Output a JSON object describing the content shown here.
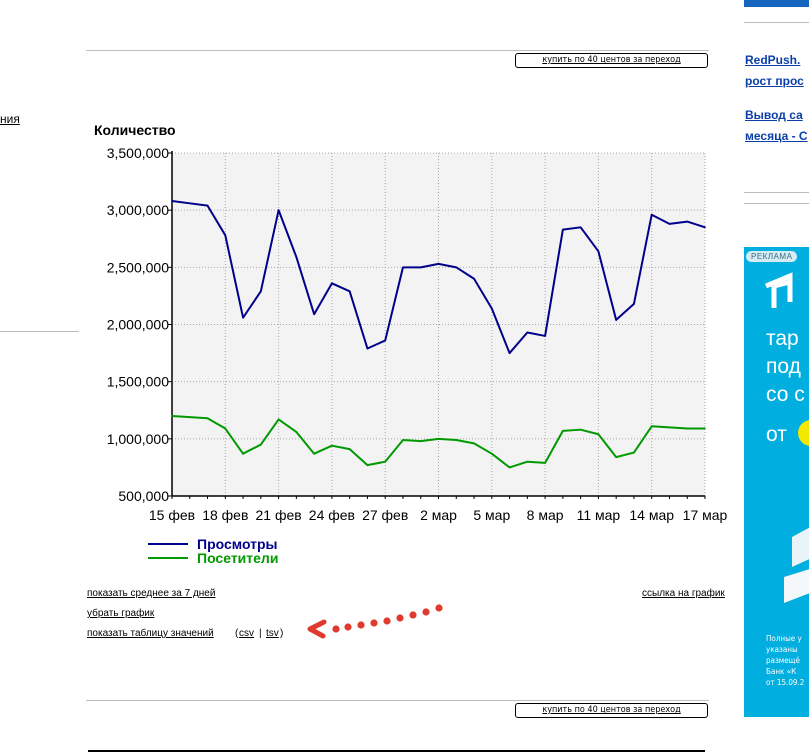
{
  "page": {
    "buy_label": "купить по 40 центов за переход",
    "left_fragment": "ния",
    "side_links": [
      "RedPush.",
      "рост прос",
      "Вывод са",
      "месяца - С"
    ]
  },
  "ad": {
    "badge": "РЕКЛАМА",
    "big_lines": [
      "тар",
      "под",
      "со с",
      "от"
    ],
    "small_lines": [
      "Полные у",
      "указаны",
      "размещё",
      "Банк «К",
      "от 15.09.2"
    ]
  },
  "chart_links": {
    "avg7": "показать среднее за 7 дней",
    "remove": "убрать график",
    "table": "показать таблицу значений",
    "paren_open": "(",
    "csv": "csv",
    "sep": "|",
    "tsv": "tsv",
    "paren_close": ")",
    "link": "ссылка на график"
  },
  "chart_data": {
    "type": "line",
    "ylabel": "Количество",
    "ylim": [
      500000,
      3500000
    ],
    "yticks": [
      3500000,
      3000000,
      2500000,
      2000000,
      1500000,
      1000000,
      500000
    ],
    "ytick_labels": [
      "3,500,000",
      "3,000,000",
      "2,500,000",
      "2,000,000",
      "1,500,000",
      "1,000,000",
      "500,000"
    ],
    "x": [
      "15 фев",
      "16 фев",
      "17 фев",
      "18 фев",
      "19 фев",
      "20 фев",
      "21 фев",
      "22 фев",
      "23 фев",
      "24 фев",
      "25 фев",
      "26 фев",
      "27 фев",
      "28 фев",
      "1 мар",
      "2 мар",
      "3 мар",
      "4 мар",
      "5 мар",
      "6 мар",
      "7 мар",
      "8 мар",
      "9 мар",
      "10 мар",
      "11 мар",
      "12 мар",
      "13 мар",
      "14 мар",
      "15 мар",
      "16 мар",
      "17 мар"
    ],
    "xtick_labels": [
      "15 фев",
      "18 фев",
      "21 фев",
      "24 фев",
      "27 фев",
      "2 мар",
      "5 мар",
      "8 мар",
      "11 мар",
      "14 мар",
      "17 мар"
    ],
    "grid": true,
    "legend_position": "bottom-left",
    "series": [
      {
        "name": "Просмотры",
        "color": "#00008b",
        "values": [
          3080000,
          3060000,
          3040000,
          2780000,
          2060000,
          2290000,
          3000000,
          2590000,
          2090000,
          2360000,
          2290000,
          1790000,
          1860000,
          2500000,
          2500000,
          2530000,
          2500000,
          2400000,
          2140000,
          1750000,
          1930000,
          1900000,
          2830000,
          2850000,
          2640000,
          2040000,
          2180000,
          2960000,
          2880000,
          2900000,
          2850000
        ]
      },
      {
        "name": "Посетители",
        "color": "#009900",
        "values": [
          1200000,
          1190000,
          1180000,
          1090000,
          870000,
          950000,
          1170000,
          1060000,
          870000,
          940000,
          910000,
          770000,
          800000,
          990000,
          980000,
          1000000,
          990000,
          960000,
          870000,
          750000,
          800000,
          790000,
          1070000,
          1080000,
          1040000,
          840000,
          880000,
          1110000,
          1100000,
          1090000,
          1090000
        ]
      }
    ]
  }
}
